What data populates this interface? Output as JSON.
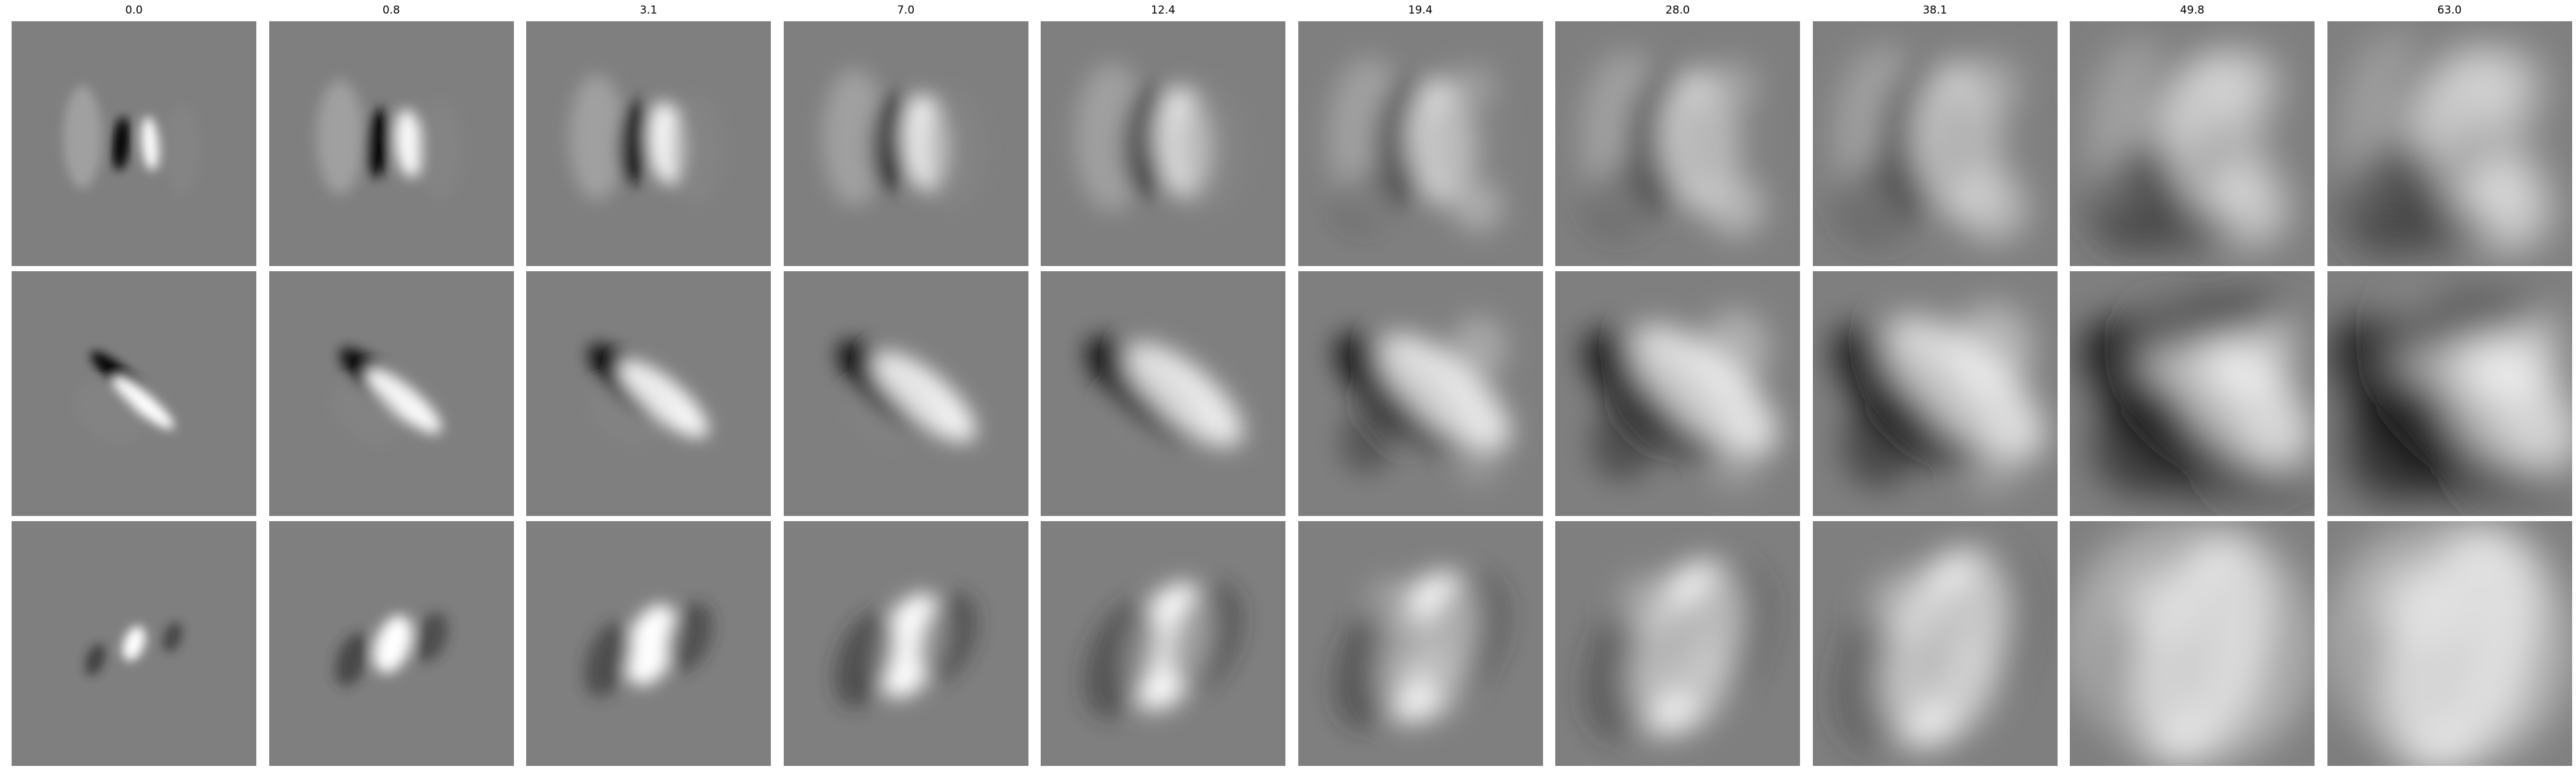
{
  "figure": {
    "column_titles": [
      "0.0",
      "0.8",
      "3.1",
      "7.0",
      "12.4",
      "19.4",
      "28.0",
      "38.1",
      "49.8",
      "63.0"
    ],
    "row_count": 3,
    "colormap": "gray",
    "background_gray": "#7f7f7f",
    "rows": [
      {
        "pattern": "vertical dark-left / bright-right dipole, spreading and becoming noisy as the column value grows",
        "orientation_deg": 0
      },
      {
        "pattern": "diagonal dark upper-left / bright lower-right dipole, spreading and becoming noisy as the column value grows",
        "orientation_deg": 40
      },
      {
        "pattern": "bright central blob with dark side lobes, blurring into a large bright region as the column value grows",
        "orientation_deg": 0
      }
    ]
  }
}
